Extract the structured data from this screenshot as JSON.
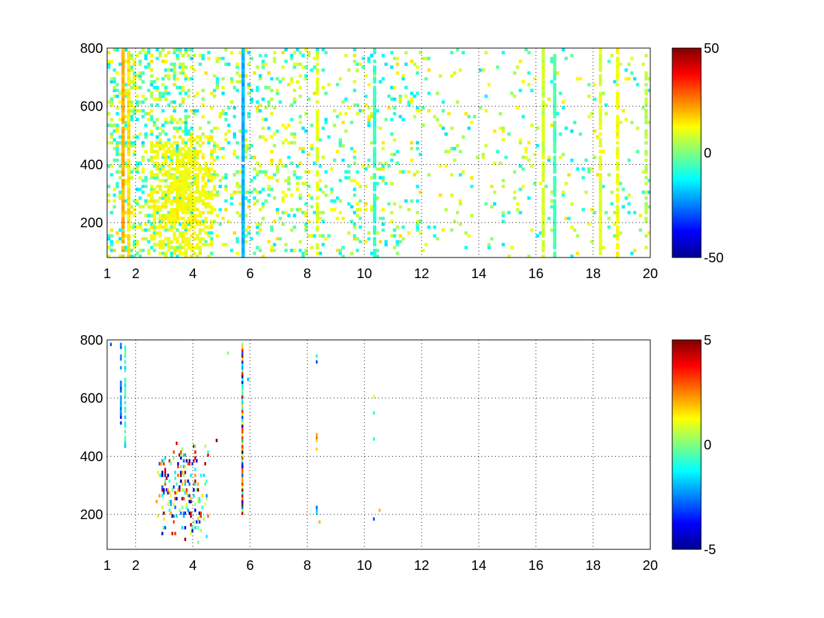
{
  "chart_data": [
    {
      "type": "heatmap",
      "title": "",
      "xlabel": "",
      "ylabel": "",
      "xlim": [
        1,
        20
      ],
      "ylim": [
        80,
        800
      ],
      "xticks": [
        1,
        2,
        4,
        6,
        8,
        10,
        12,
        14,
        16,
        18,
        20
      ],
      "xtick_labels": [
        "1",
        "2",
        "4",
        "6",
        "8",
        "10",
        "12",
        "14",
        "16",
        "18",
        "20"
      ],
      "yticks": [
        200,
        400,
        600,
        800
      ],
      "ytick_labels": [
        "200",
        "400",
        "600",
        "800"
      ],
      "grid": true,
      "colormap": "jet",
      "clim": [
        -50,
        50
      ],
      "colorbar_ticks": [
        50,
        0,
        -50
      ],
      "colorbar_tick_labels": [
        "50",
        "0",
        "-50"
      ],
      "background": "#ffffff",
      "cells": {
        "x_bin": 0.1,
        "y_bin": 10,
        "stripes": [
          {
            "x": 1.5,
            "value": 20,
            "density": 0.95
          },
          {
            "x": 1.7,
            "value": 15,
            "density": 0.9
          },
          {
            "x": 5.7,
            "value": -20,
            "density": 0.98
          },
          {
            "x": 8.3,
            "value": 10,
            "density": 0.7
          },
          {
            "x": 10.3,
            "value": -8,
            "density": 0.85
          },
          {
            "x": 16.2,
            "value": 8,
            "density": 0.92
          },
          {
            "x": 16.6,
            "value": -5,
            "density": 0.9
          },
          {
            "x": 18.2,
            "value": 10,
            "density": 0.88
          },
          {
            "x": 18.8,
            "value": 12,
            "density": 0.7
          },
          {
            "x": 19.8,
            "value": 5,
            "density": 0.6
          }
        ],
        "cluster": {
          "x_range": [
            2.5,
            4.7
          ],
          "y_range": [
            80,
            500
          ],
          "value": 12
        },
        "note_density_by_x": [
          {
            "x": [
              1,
              4
            ],
            "density": 0.55
          },
          {
            "x": [
              4,
              8
            ],
            "density": 0.3
          },
          {
            "x": [
              8,
              12
            ],
            "density": 0.22
          },
          {
            "x": [
              12,
              20
            ],
            "density": 0.1
          }
        ]
      }
    },
    {
      "type": "heatmap",
      "title": "",
      "xlabel": "",
      "ylabel": "",
      "xlim": [
        1,
        20
      ],
      "ylim": [
        80,
        800
      ],
      "xticks": [
        1,
        2,
        4,
        6,
        8,
        10,
        12,
        14,
        16,
        18,
        20
      ],
      "xtick_labels": [
        "1",
        "2",
        "4",
        "6",
        "8",
        "10",
        "12",
        "14",
        "16",
        "18",
        "20"
      ],
      "yticks": [
        200,
        400,
        600,
        800
      ],
      "ytick_labels": [
        "200",
        "400",
        "600",
        "800"
      ],
      "grid": true,
      "colormap": "jet",
      "clim": [
        -5,
        5
      ],
      "colorbar_ticks": [
        5,
        0,
        -5
      ],
      "colorbar_tick_labels": [
        "5",
        "0",
        "-5"
      ],
      "background": "#ffffff",
      "cells": {
        "x_bin": 0.05,
        "y_bin": 10,
        "stripes": [
          {
            "x": 5.7,
            "y_range": [
              200,
              790
            ],
            "value": 0,
            "density": 1.0
          },
          {
            "x": 1.45,
            "y_range": [
              500,
              790
            ],
            "value": -3,
            "density": 0.6
          },
          {
            "x": 1.6,
            "y_range": [
              430,
              780
            ],
            "value": -1,
            "density": 0.7
          },
          {
            "x": 8.3,
            "y_range": [
              420,
              490
            ],
            "value": 2,
            "density": 0.8
          },
          {
            "x": 8.3,
            "y_range": [
              200,
              230
            ],
            "value": -2,
            "density": 0.7
          }
        ],
        "cluster": {
          "x_range": [
            2.7,
            4.5
          ],
          "y_range": [
            100,
            440
          ],
          "value": 0
        },
        "isolated": [
          {
            "x": 1.1,
            "y": 780,
            "value": -3
          },
          {
            "x": 3.4,
            "y": 440,
            "value": 4
          },
          {
            "x": 4.8,
            "y": 450,
            "value": 5
          },
          {
            "x": 5.2,
            "y": 750,
            "value": 0
          },
          {
            "x": 5.9,
            "y": 660,
            "value": -2
          },
          {
            "x": 8.3,
            "y": 720,
            "value": -3
          },
          {
            "x": 8.3,
            "y": 740,
            "value": -1
          },
          {
            "x": 8.4,
            "y": 170,
            "value": 2
          },
          {
            "x": 10.3,
            "y": 545,
            "value": -1
          },
          {
            "x": 10.3,
            "y": 455,
            "value": -1
          },
          {
            "x": 10.3,
            "y": 600,
            "value": 1
          },
          {
            "x": 10.3,
            "y": 180,
            "value": -3
          },
          {
            "x": 10.5,
            "y": 210,
            "value": 2
          }
        ]
      }
    }
  ]
}
